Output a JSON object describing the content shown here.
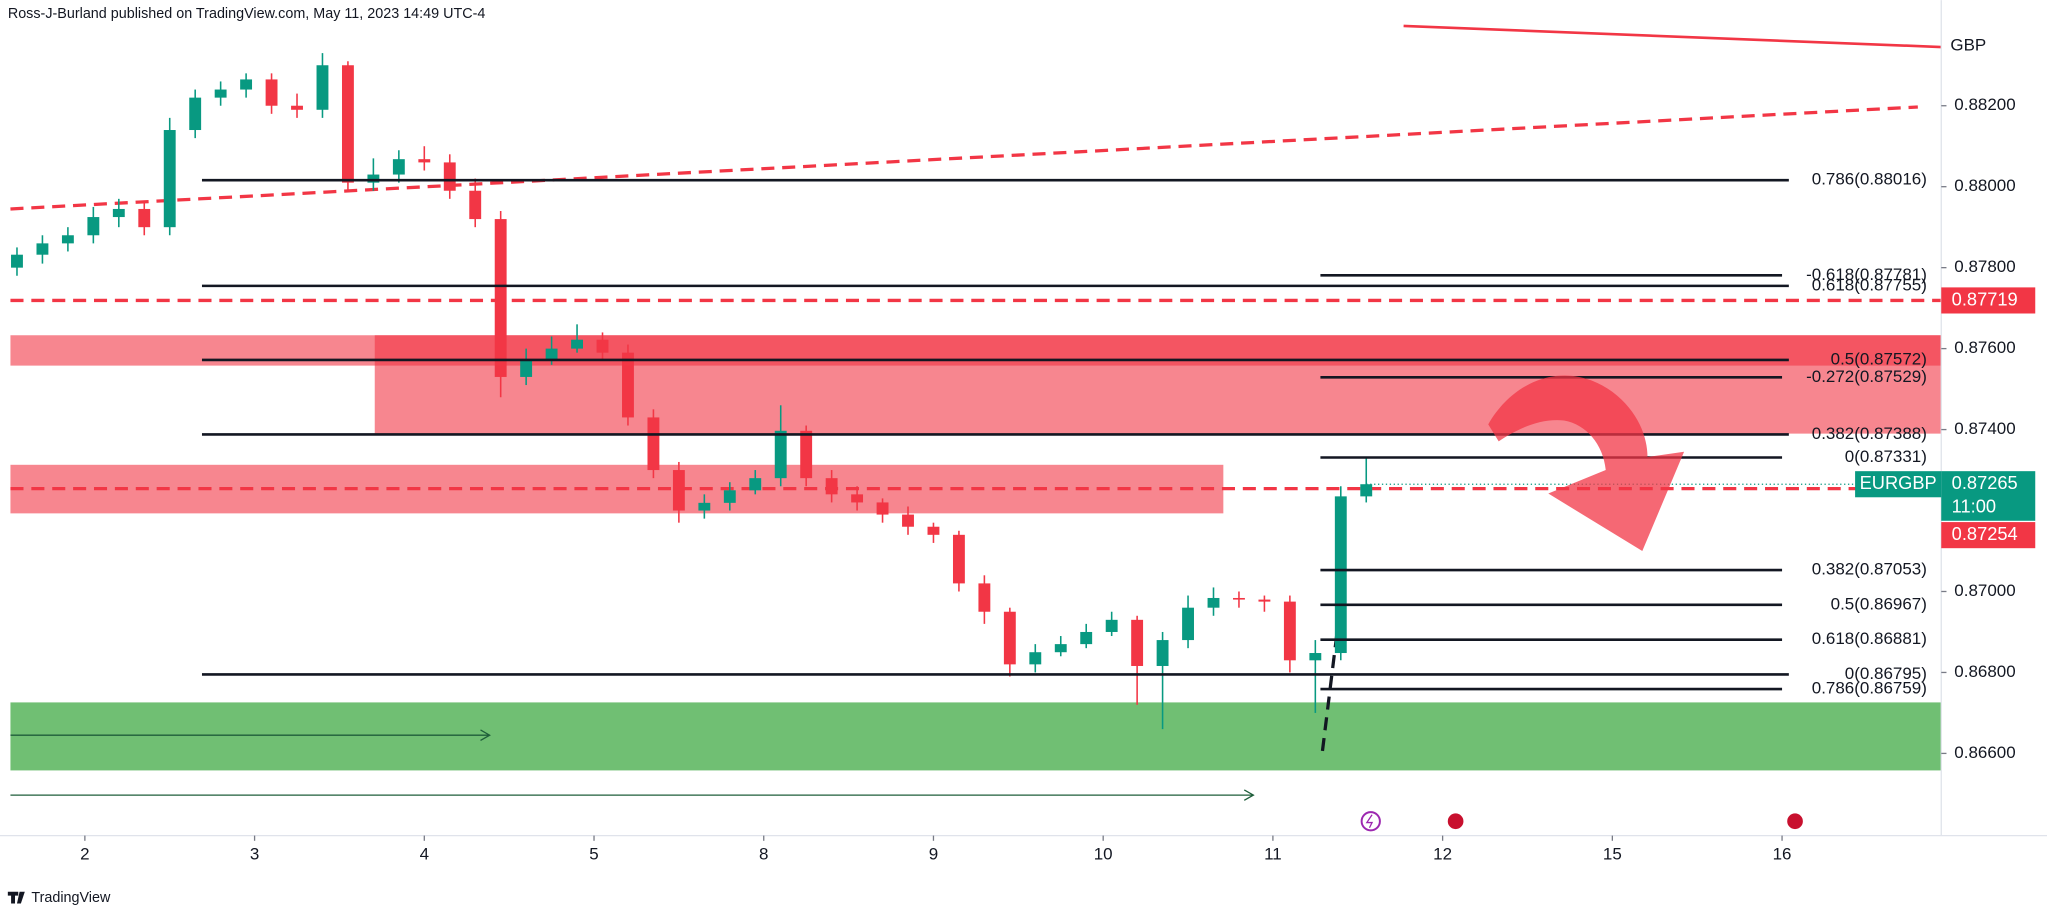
{
  "chart_data": {
    "type": "candlestick",
    "header": "Ross-J-Burland published on TradingView.com, May 11, 2023 14:49 UTC-4",
    "footer": "TradingView",
    "currency_label": "GBP",
    "up_color": "#089981",
    "down_color": "#f23645",
    "x": [
      -0.4,
      -0.25,
      -0.1,
      0.05,
      0.2,
      0.35,
      0.5,
      0.65,
      0.8,
      0.95,
      1.1,
      1.25,
      1.4,
      1.55,
      1.7,
      1.85,
      2,
      2.15,
      2.3,
      2.45,
      2.6,
      2.75,
      2.9,
      3.05,
      3.2,
      3.35,
      3.5,
      3.65,
      3.8,
      3.95,
      4.1,
      4.25,
      4.4,
      4.55,
      4.7,
      4.85,
      5,
      5.15,
      5.3,
      5.45,
      5.6,
      5.75,
      5.9,
      6.05,
      6.2,
      6.35,
      6.5,
      6.65,
      6.8,
      6.95,
      7.1,
      7.25,
      7.4,
      7.55
    ],
    "open": [
      0.878,
      0.87832,
      0.8786,
      0.8788,
      0.87925,
      0.87945,
      0.879,
      0.8814,
      0.8822,
      0.8824,
      0.88265,
      0.882,
      0.8819,
      0.883,
      0.8801,
      0.8803,
      0.88068,
      0.8806,
      0.8799,
      0.8792,
      0.8753,
      0.87574,
      0.876,
      0.87622,
      0.8759,
      0.8743,
      0.873,
      0.872,
      0.87219,
      0.8725,
      0.8728,
      0.87397,
      0.8728,
      0.8724,
      0.8722,
      0.8719,
      0.8716,
      0.8714,
      0.8702,
      0.8695,
      0.8682,
      0.8685,
      0.8687,
      0.869,
      0.8693,
      0.86816,
      0.8688,
      0.8696,
      0.86984,
      0.8698,
      0.86975,
      0.8683,
      0.86848,
      0.87235
    ],
    "high": [
      0.8785,
      0.8788,
      0.879,
      0.8795,
      0.8797,
      0.8796,
      0.8817,
      0.8824,
      0.8826,
      0.8828,
      0.8828,
      0.8823,
      0.8833,
      0.8831,
      0.8807,
      0.8809,
      0.881,
      0.8808,
      0.8802,
      0.8794,
      0.876,
      0.8763,
      0.8766,
      0.8764,
      0.8761,
      0.8745,
      0.8732,
      0.8724,
      0.8727,
      0.873,
      0.8746,
      0.8741,
      0.873,
      0.8726,
      0.8723,
      0.8721,
      0.8717,
      0.8715,
      0.8704,
      0.8696,
      0.8687,
      0.8689,
      0.8692,
      0.8695,
      0.8694,
      0.869,
      0.8699,
      0.8701,
      0.87,
      0.8699,
      0.8699,
      0.8688,
      0.8726,
      0.87331
    ],
    "low": [
      0.8778,
      0.8781,
      0.8784,
      0.8786,
      0.879,
      0.8788,
      0.8788,
      0.8812,
      0.882,
      0.8822,
      0.8818,
      0.8817,
      0.8817,
      0.8799,
      0.8799,
      0.8801,
      0.8804,
      0.8797,
      0.879,
      0.8748,
      0.8751,
      0.8756,
      0.8759,
      0.8757,
      0.8741,
      0.8728,
      0.8717,
      0.8718,
      0.872,
      0.8724,
      0.8726,
      0.8726,
      0.8722,
      0.872,
      0.8717,
      0.8714,
      0.8712,
      0.87,
      0.8692,
      0.8679,
      0.868,
      0.8684,
      0.8686,
      0.8689,
      0.8672,
      0.8666,
      0.8686,
      0.8694,
      0.8696,
      0.8695,
      0.868,
      0.867,
      0.8683,
      0.8722
    ],
    "close": [
      0.87832,
      0.8786,
      0.8788,
      0.87925,
      0.87945,
      0.879,
      0.8814,
      0.8822,
      0.8824,
      0.88265,
      0.882,
      0.8819,
      0.883,
      0.8801,
      0.8803,
      0.88068,
      0.8806,
      0.8799,
      0.8792,
      0.8753,
      0.87574,
      0.876,
      0.87622,
      0.8759,
      0.8743,
      0.873,
      0.872,
      0.87219,
      0.8725,
      0.8728,
      0.87397,
      0.8728,
      0.8724,
      0.8722,
      0.8719,
      0.8716,
      0.8714,
      0.8702,
      0.8695,
      0.8682,
      0.8685,
      0.8687,
      0.869,
      0.8693,
      0.86816,
      0.8688,
      0.8696,
      0.86984,
      0.8698,
      0.86975,
      0.8683,
      0.86848,
      0.87235,
      0.87265
    ],
    "xlim": [
      -0.4385,
      10.938
    ],
    "xticks": [
      {
        "value": 0,
        "label": "2"
      },
      {
        "value": 1,
        "label": "3"
      },
      {
        "value": 2,
        "label": "4"
      },
      {
        "value": 3,
        "label": "5"
      },
      {
        "value": 4,
        "label": "8"
      },
      {
        "value": 5,
        "label": "9"
      },
      {
        "value": 6,
        "label": "10"
      },
      {
        "value": 7,
        "label": "11"
      },
      {
        "value": 8,
        "label": "12"
      },
      {
        "value": 9,
        "label": "15"
      },
      {
        "value": 10,
        "label": "16"
      }
    ],
    "ylim": [
      0.86397,
      0.88461
    ],
    "yticks": [
      {
        "value": 0.866,
        "label": "0.86600"
      },
      {
        "value": 0.868,
        "label": "0.86800"
      },
      {
        "value": 0.87,
        "label": "0.87000"
      },
      {
        "value": 0.874,
        "label": "0.87400"
      },
      {
        "value": 0.876,
        "label": "0.87600"
      },
      {
        "value": 0.878,
        "label": "0.87800"
      },
      {
        "value": 0.88,
        "label": "0.88000"
      },
      {
        "value": 0.882,
        "label": "0.88200"
      }
    ],
    "zones": [
      {
        "x0": -0.4385,
        "x1": 10.938,
        "y0": 0.87558,
        "y1": 0.87633,
        "color": "rgba(242,54,69,0.6)"
      },
      {
        "x0": 1.708,
        "x1": 10.938,
        "y0": 0.8739,
        "y1": 0.87633,
        "color": "rgba(242,54,69,0.6)"
      },
      {
        "x0": -0.4385,
        "x1": 6.708,
        "y0": 0.87193,
        "y1": 0.87313,
        "color": "rgba(242,54,69,0.6)"
      },
      {
        "x0": -0.4385,
        "x1": 10.938,
        "y0": 0.86558,
        "y1": 0.86726,
        "color": "rgba(76,175,80,0.8)"
      }
    ],
    "lines": [
      {
        "from": [
          -0.4385,
          0.87945
        ],
        "to": [
          10.8,
          0.88197
        ],
        "color": "#f23645",
        "style": "dashed"
      },
      {
        "from": [
          7.77,
          0.88397
        ],
        "to": [
          10.938,
          0.88345
        ],
        "color": "#f23645",
        "style": "solid"
      },
      {
        "from": [
          -0.4385,
          0.87719
        ],
        "to": [
          10.938,
          0.87719
        ],
        "color": "#f23645",
        "style": "dashed"
      },
      {
        "from": [
          -0.4385,
          0.87254
        ],
        "to": [
          10.938,
          0.87254
        ],
        "color": "#f23645",
        "style": "dashed"
      },
      {
        "from": [
          7.292,
          0.86606
        ],
        "to": [
          7.423,
          0.87052
        ],
        "color": "#131722",
        "style": "dashed"
      },
      {
        "from": [
          -0.4385,
          0.86645
        ],
        "to": [
          2.385,
          0.86645
        ],
        "color": "#1e5e3a",
        "style": "arrow"
      },
      {
        "from": [
          -0.4385,
          0.86497
        ],
        "to": [
          6.885,
          0.86497
        ],
        "color": "#1e5e3a",
        "style": "arrow"
      }
    ],
    "levels": [
      {
        "label": "0.786(0.88016)",
        "value": 0.88016,
        "from": 0.69,
        "to": 10.04
      },
      {
        "label": "0.618(0.87755)",
        "value": 0.87755,
        "from": 0.69,
        "to": 10.04
      },
      {
        "label": "0.5(0.87572)",
        "value": 0.87572,
        "from": 0.69,
        "to": 10.04
      },
      {
        "label": "0.382(0.87388)",
        "value": 0.87388,
        "from": 0.69,
        "to": 10.04
      },
      {
        "label": "0(0.86795)",
        "value": 0.86795,
        "from": 0.69,
        "to": 10.04
      },
      {
        "label": "-0.618(0.87781)",
        "value": 0.87781,
        "from": 7.28,
        "to": 10.0
      },
      {
        "label": "-0.272(0.87529)",
        "value": 0.87529,
        "from": 7.28,
        "to": 10.0
      },
      {
        "label": "0(0.87331)",
        "value": 0.87331,
        "from": 7.28,
        "to": 10.0
      },
      {
        "label": "0.382(0.87053)",
        "value": 0.87053,
        "from": 7.28,
        "to": 10.0
      },
      {
        "label": "0.5(0.86967)",
        "value": 0.86967,
        "from": 7.28,
        "to": 10.0
      },
      {
        "label": "0.618(0.86881)",
        "value": 0.86881,
        "from": 7.28,
        "to": 10.0
      },
      {
        "label": "0.786(0.86759)",
        "value": 0.86759,
        "from": 7.28,
        "to": 10.0
      }
    ],
    "tags": [
      {
        "label": "0.87719",
        "value": 0.87719,
        "color": "#f23645"
      },
      {
        "label": "0.87265",
        "value": 0.87265,
        "color": "#089981",
        "symbol": "EURGBP",
        "countdown": "11:00"
      },
      {
        "label": "0.87254",
        "value": 0.87254,
        "color": "#f23645"
      }
    ]
  }
}
